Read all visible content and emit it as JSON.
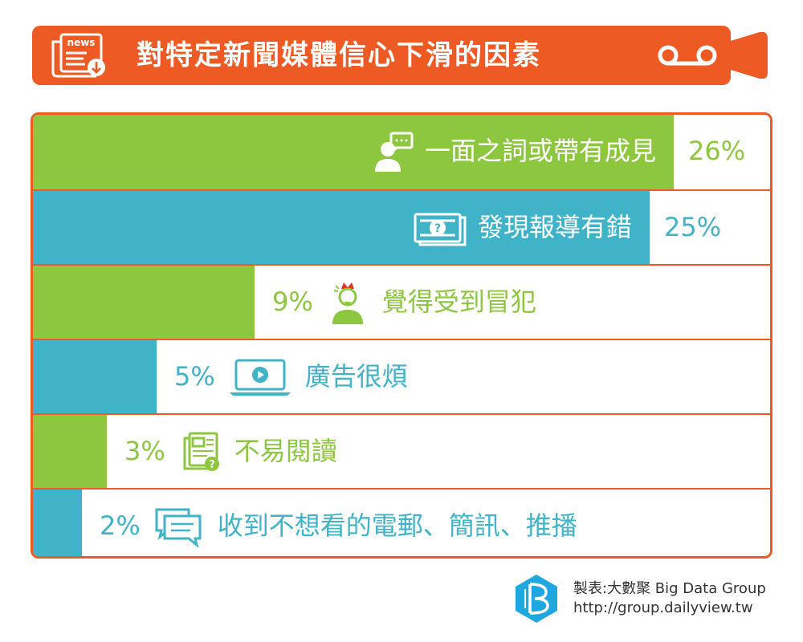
{
  "title": "對特定新聞媒體信心下滑的因素",
  "header_icons": {
    "left": "newspaper-download-icon",
    "right": "tape-icon"
  },
  "news_icon_text": "news",
  "colors": {
    "accent": "#ee5a24",
    "green": "#8dc63f",
    "blue": "#41b3c8"
  },
  "chart_data": {
    "type": "bar",
    "orientation": "horizontal",
    "title": "對特定新聞媒體信心下滑的因素",
    "unit": "%",
    "categories": [
      "一面之詞或帶有成見",
      "發現報導有錯",
      "覺得受到冒犯",
      "廣告很煩",
      "不易閱讀",
      "收到不想看的電郵、簡訊、推播"
    ],
    "values": [
      26,
      25,
      9,
      5,
      3,
      2
    ],
    "value_labels": [
      "26%",
      "25%",
      "9%",
      "5%",
      "3%",
      "2%"
    ],
    "bar_colors": [
      "#8dc63f",
      "#41b3c8",
      "#8dc63f",
      "#41b3c8",
      "#8dc63f",
      "#41b3c8"
    ],
    "icons": [
      "person-speech-bubble-icon",
      "document-question-icon",
      "angry-person-icon",
      "laptop-play-icon",
      "article-question-icon",
      "chat-bubbles-icon"
    ],
    "xlim": [
      0,
      30
    ],
    "grid": false,
    "legend": "none"
  },
  "footer": {
    "credit_line": "製表:大數聚 Big Data Group",
    "url": "http://group.dailyview.tw",
    "logo_icon": "big-data-group-logo-icon"
  }
}
